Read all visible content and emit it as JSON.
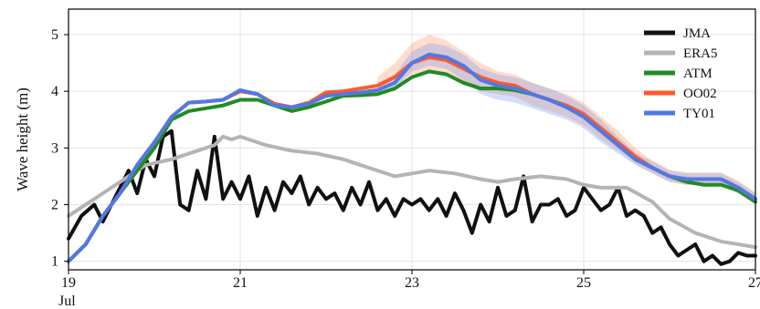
{
  "chart_data": {
    "type": "line",
    "title": "",
    "xlabel": "",
    "ylabel": "Wave height (m)",
    "xlim": [
      19,
      27
    ],
    "ylim": [
      0.85,
      5.45
    ],
    "x_ticks": [
      {
        "value": 19,
        "label": "19"
      },
      {
        "value": 21,
        "label": "21"
      },
      {
        "value": 23,
        "label": "23"
      },
      {
        "value": 25,
        "label": "25"
      },
      {
        "value": 27,
        "label": "27"
      }
    ],
    "x_sublabel": "Jul",
    "y_ticks": [
      {
        "value": 1,
        "label": "1"
      },
      {
        "value": 2,
        "label": "2"
      },
      {
        "value": 3,
        "label": "3"
      },
      {
        "value": 4,
        "label": "4"
      },
      {
        "value": 5,
        "label": "5"
      }
    ],
    "grid": true,
    "legend_position": "top-right",
    "series": [
      {
        "name": "JMA",
        "color": "#111111",
        "width": 4,
        "x": [
          19.0,
          19.15,
          19.3,
          19.4,
          19.5,
          19.6,
          19.7,
          19.8,
          19.9,
          20.0,
          20.1,
          20.2,
          20.3,
          20.4,
          20.5,
          20.6,
          20.7,
          20.8,
          20.9,
          21.0,
          21.1,
          21.2,
          21.3,
          21.4,
          21.5,
          21.6,
          21.7,
          21.8,
          21.9,
          22.0,
          22.1,
          22.2,
          22.3,
          22.4,
          22.5,
          22.6,
          22.7,
          22.8,
          22.9,
          23.0,
          23.1,
          23.2,
          23.3,
          23.4,
          23.5,
          23.6,
          23.7,
          23.8,
          23.9,
          24.0,
          24.1,
          24.2,
          24.3,
          24.4,
          24.5,
          24.6,
          24.7,
          24.8,
          24.9,
          25.0,
          25.1,
          25.2,
          25.3,
          25.4,
          25.5,
          25.6,
          25.7,
          25.8,
          25.9,
          26.0,
          26.1,
          26.2,
          26.3,
          26.4,
          26.5,
          26.6,
          26.7,
          26.8,
          26.9,
          27.0
        ],
        "values": [
          1.4,
          1.8,
          2.0,
          1.7,
          2.0,
          2.3,
          2.6,
          2.2,
          2.8,
          2.5,
          3.2,
          3.3,
          2.0,
          1.9,
          2.6,
          2.1,
          3.2,
          2.1,
          2.4,
          2.1,
          2.5,
          1.8,
          2.3,
          1.9,
          2.4,
          2.2,
          2.5,
          2.0,
          2.3,
          2.1,
          2.2,
          1.9,
          2.3,
          2.0,
          2.4,
          1.9,
          2.1,
          1.8,
          2.1,
          2.0,
          2.1,
          1.9,
          2.1,
          1.8,
          2.2,
          1.9,
          1.5,
          2.0,
          1.7,
          2.3,
          1.8,
          1.9,
          2.5,
          1.7,
          2.0,
          2.0,
          2.1,
          1.8,
          1.9,
          2.3,
          2.1,
          1.9,
          2.0,
          2.3,
          1.8,
          1.9,
          1.8,
          1.5,
          1.6,
          1.3,
          1.1,
          1.2,
          1.3,
          1.0,
          1.1,
          0.95,
          1.0,
          1.15,
          1.1,
          1.1
        ]
      },
      {
        "name": "ERA5",
        "color": "#b4b4b4",
        "width": 4,
        "x": [
          19.0,
          19.3,
          19.6,
          19.9,
          20.2,
          20.5,
          20.7,
          20.8,
          20.9,
          21.0,
          21.3,
          21.6,
          21.9,
          22.2,
          22.5,
          22.8,
          23.0,
          23.2,
          23.5,
          23.8,
          24.0,
          24.2,
          24.5,
          24.8,
          25.0,
          25.2,
          25.5,
          25.8,
          26.0,
          26.3,
          26.6,
          27.0
        ],
        "values": [
          1.8,
          2.1,
          2.4,
          2.7,
          2.8,
          2.95,
          3.05,
          3.2,
          3.15,
          3.2,
          3.05,
          2.95,
          2.9,
          2.8,
          2.65,
          2.5,
          2.55,
          2.6,
          2.55,
          2.45,
          2.4,
          2.45,
          2.5,
          2.45,
          2.35,
          2.3,
          2.3,
          2.05,
          1.75,
          1.5,
          1.35,
          1.25
        ]
      },
      {
        "name": "ATM",
        "color": "#228b22",
        "width": 4,
        "x": [
          19.0,
          19.2,
          19.4,
          19.6,
          19.8,
          20.0,
          20.2,
          20.4,
          20.6,
          20.8,
          21.0,
          21.2,
          21.4,
          21.6,
          21.8,
          22.0,
          22.2,
          22.4,
          22.6,
          22.8,
          23.0,
          23.2,
          23.4,
          23.6,
          23.8,
          24.0,
          24.2,
          24.4,
          24.6,
          24.8,
          25.0,
          25.2,
          25.4,
          25.6,
          25.8,
          26.0,
          26.2,
          26.4,
          26.6,
          26.8,
          27.0
        ],
        "values": [
          1.0,
          1.3,
          1.8,
          2.2,
          2.6,
          3.0,
          3.5,
          3.65,
          3.7,
          3.75,
          3.85,
          3.85,
          3.75,
          3.65,
          3.72,
          3.82,
          3.92,
          3.93,
          3.95,
          4.05,
          4.25,
          4.35,
          4.3,
          4.15,
          4.05,
          4.05,
          4.02,
          3.95,
          3.85,
          3.72,
          3.55,
          3.3,
          3.05,
          2.8,
          2.65,
          2.5,
          2.4,
          2.35,
          2.35,
          2.25,
          2.05
        ]
      },
      {
        "name": "OO02",
        "color": "#ff5a28",
        "width": 4,
        "x": [
          19.0,
          19.2,
          19.4,
          19.6,
          19.8,
          20.0,
          20.2,
          20.4,
          20.6,
          20.8,
          21.0,
          21.2,
          21.4,
          21.6,
          21.8,
          22.0,
          22.2,
          22.4,
          22.6,
          22.8,
          23.0,
          23.2,
          23.4,
          23.6,
          23.8,
          24.0,
          24.2,
          24.4,
          24.6,
          24.8,
          25.0,
          25.2,
          25.4,
          25.6,
          25.8,
          26.0,
          26.2,
          26.4,
          26.6,
          26.8,
          27.0
        ],
        "values": [
          1.0,
          1.3,
          1.8,
          2.2,
          2.7,
          3.1,
          3.55,
          3.8,
          3.82,
          3.85,
          4.0,
          3.95,
          3.78,
          3.72,
          3.8,
          3.98,
          4.0,
          4.05,
          4.1,
          4.25,
          4.5,
          4.6,
          4.55,
          4.4,
          4.25,
          4.15,
          4.1,
          3.95,
          3.85,
          3.75,
          3.6,
          3.35,
          3.1,
          2.85,
          2.65,
          2.5,
          2.45,
          2.45,
          2.45,
          2.3,
          2.1
        ]
      },
      {
        "name": "TY01",
        "color": "#5078e6",
        "width": 4,
        "x": [
          19.0,
          19.2,
          19.4,
          19.6,
          19.8,
          20.0,
          20.2,
          20.4,
          20.6,
          20.8,
          21.0,
          21.2,
          21.4,
          21.6,
          21.8,
          22.0,
          22.2,
          22.4,
          22.6,
          22.8,
          23.0,
          23.2,
          23.4,
          23.6,
          23.8,
          24.0,
          24.2,
          24.4,
          24.6,
          24.8,
          25.0,
          25.2,
          25.4,
          25.6,
          25.8,
          26.0,
          26.2,
          26.4,
          26.6,
          26.8,
          27.0
        ],
        "values": [
          1.0,
          1.3,
          1.8,
          2.2,
          2.7,
          3.1,
          3.55,
          3.8,
          3.82,
          3.85,
          4.02,
          3.95,
          3.75,
          3.72,
          3.78,
          3.92,
          3.95,
          3.98,
          4.02,
          4.15,
          4.5,
          4.65,
          4.6,
          4.45,
          4.2,
          4.1,
          4.05,
          3.95,
          3.85,
          3.72,
          3.55,
          3.3,
          3.05,
          2.8,
          2.65,
          2.5,
          2.45,
          2.45,
          2.45,
          2.3,
          2.1
        ]
      }
    ],
    "spread_bands": [
      {
        "series": "OO02",
        "color": "#ff8c5a",
        "opacity": 0.3,
        "x": [
          22.6,
          22.8,
          23.0,
          23.2,
          23.4,
          23.6,
          23.8,
          24.0,
          24.2,
          24.4,
          24.6,
          24.8,
          25.0,
          25.2,
          25.4,
          25.6,
          25.8,
          26.0,
          26.2,
          26.4,
          26.6,
          26.8,
          27.0
        ],
        "lower": [
          4.0,
          4.1,
          4.3,
          4.35,
          4.3,
          4.15,
          4.0,
          3.95,
          3.9,
          3.75,
          3.65,
          3.55,
          3.4,
          3.15,
          2.95,
          2.72,
          2.55,
          2.4,
          2.35,
          2.35,
          2.35,
          2.2,
          2.0
        ],
        "upper": [
          4.25,
          4.5,
          4.85,
          5.0,
          4.9,
          4.7,
          4.5,
          4.35,
          4.3,
          4.15,
          4.05,
          3.95,
          3.8,
          3.55,
          3.3,
          3.0,
          2.78,
          2.62,
          2.57,
          2.57,
          2.57,
          2.42,
          2.22
        ]
      },
      {
        "series": "TY01",
        "color": "#6e96f0",
        "opacity": 0.3,
        "x": [
          22.6,
          22.8,
          23.0,
          23.2,
          23.4,
          23.6,
          23.8,
          24.0,
          24.2,
          24.4,
          24.6,
          24.8,
          25.0,
          25.2,
          25.4,
          25.6,
          25.8,
          26.0,
          26.2,
          26.4,
          26.6,
          26.8,
          27.0
        ],
        "lower": [
          3.95,
          4.05,
          4.35,
          4.45,
          4.4,
          4.2,
          3.95,
          3.85,
          3.8,
          3.7,
          3.6,
          3.5,
          3.35,
          3.1,
          2.9,
          2.7,
          2.55,
          2.4,
          2.35,
          2.35,
          2.35,
          2.2,
          2.0
        ],
        "upper": [
          4.15,
          4.3,
          4.7,
          4.85,
          4.8,
          4.65,
          4.4,
          4.3,
          4.25,
          4.15,
          4.05,
          3.92,
          3.75,
          3.5,
          3.2,
          2.92,
          2.76,
          2.6,
          2.55,
          2.55,
          2.55,
          2.4,
          2.2
        ]
      }
    ]
  }
}
